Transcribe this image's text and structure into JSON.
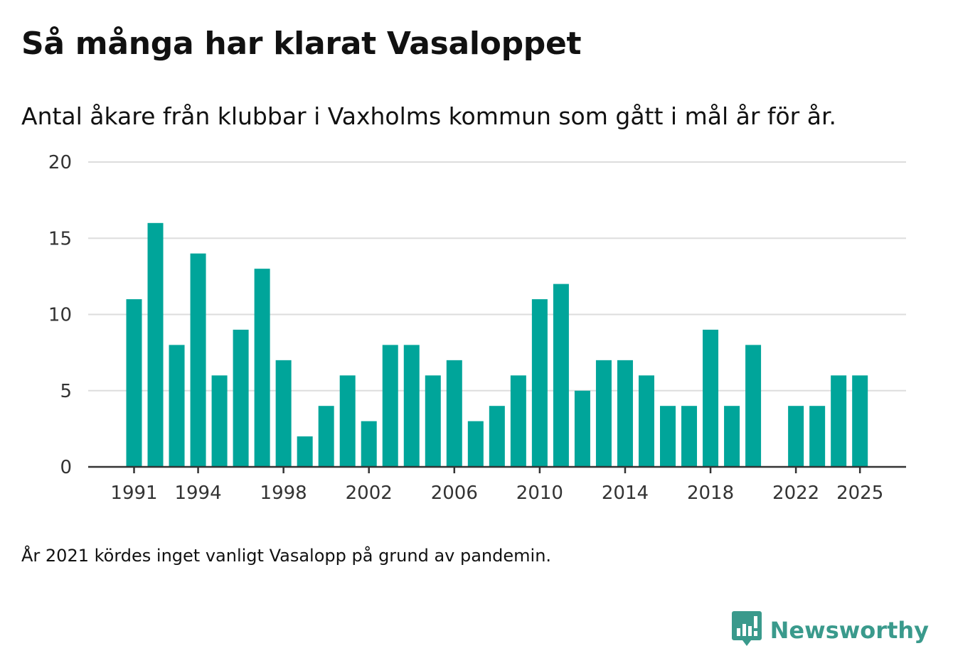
{
  "chart_data": {
    "type": "bar",
    "title": "Så många har klarat Vasaloppet",
    "subtitle": "Antal åkare från klubbar i Vaxholms kommun som gått i mål år för år.",
    "xlabel": "",
    "ylabel": "",
    "ylim": [
      0,
      20
    ],
    "yticks": [
      "0",
      "5",
      "10",
      "15",
      "20"
    ],
    "xtick_labels": [
      "1991",
      "1994",
      "1998",
      "2002",
      "2006",
      "2010",
      "2014",
      "2018",
      "2022",
      "2025"
    ],
    "categories": [
      1991,
      1992,
      1993,
      1994,
      1995,
      1996,
      1997,
      1998,
      1999,
      2000,
      2001,
      2002,
      2003,
      2004,
      2005,
      2006,
      2007,
      2008,
      2009,
      2010,
      2011,
      2012,
      2013,
      2014,
      2015,
      2016,
      2017,
      2018,
      2019,
      2020,
      2021,
      2022,
      2023,
      2024,
      2025
    ],
    "values": [
      11,
      16,
      8,
      14,
      6,
      9,
      13,
      7,
      2,
      4,
      6,
      3,
      8,
      8,
      6,
      7,
      3,
      4,
      6,
      11,
      12,
      5,
      7,
      7,
      6,
      4,
      4,
      9,
      4,
      8,
      null,
      4,
      4,
      6,
      6
    ],
    "grid": true,
    "colors": {
      "bar": "#00a59a",
      "grid": "#dddddd",
      "axis": "#333333"
    }
  },
  "note": "År 2021 kördes inget vanligt Vasalopp på grund av pandemin.",
  "brand": {
    "name": "Newsworthy",
    "icon": "newsworthy-logo-icon",
    "color": "#3a9a8c"
  }
}
